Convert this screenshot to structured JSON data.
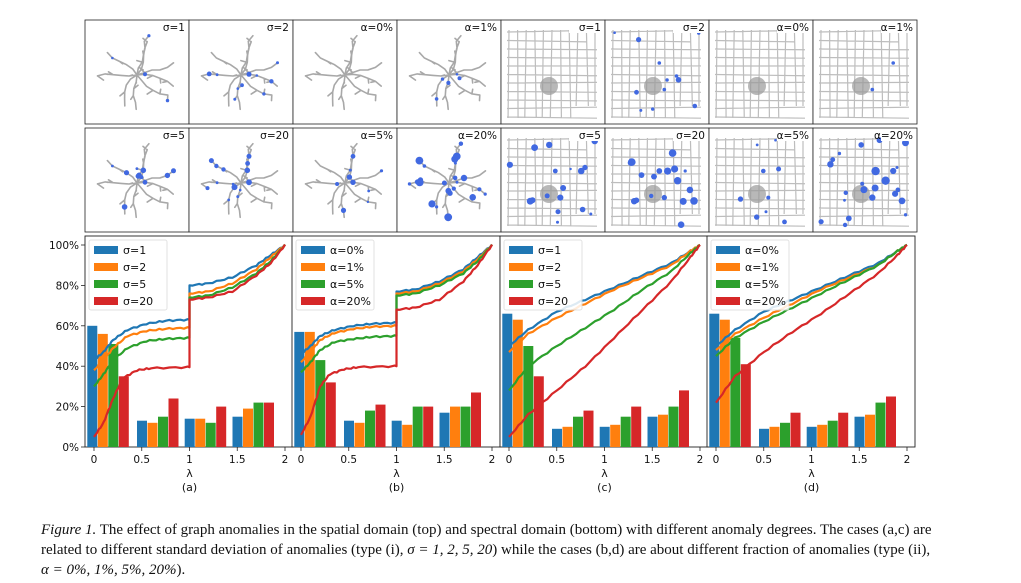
{
  "thumbnails": [
    {
      "row": 0,
      "label": "σ=1",
      "graph": "tree",
      "level": 0.1
    },
    {
      "row": 0,
      "label": "σ=2",
      "graph": "tree",
      "level": 0.28
    },
    {
      "row": 0,
      "label": "α=0%",
      "graph": "tree",
      "level": 0.0
    },
    {
      "row": 0,
      "label": "α=1%",
      "graph": "tree",
      "level": 0.12
    },
    {
      "row": 0,
      "label": "σ=1",
      "graph": "road",
      "level": 0.0
    },
    {
      "row": 0,
      "label": "σ=2",
      "graph": "road",
      "level": 0.35
    },
    {
      "row": 0,
      "label": "α=0%",
      "graph": "road",
      "level": 0.0
    },
    {
      "row": 0,
      "label": "α=1%",
      "graph": "road",
      "level": 0.06
    },
    {
      "row": 1,
      "label": "σ=5",
      "graph": "tree",
      "level": 0.3
    },
    {
      "row": 1,
      "label": "σ=20",
      "graph": "tree",
      "level": 0.42
    },
    {
      "row": 1,
      "label": "α=5%",
      "graph": "tree",
      "level": 0.25
    },
    {
      "row": 1,
      "label": "α=20%",
      "graph": "tree",
      "level": 0.75
    },
    {
      "row": 1,
      "label": "σ=5",
      "graph": "road",
      "level": 0.55
    },
    {
      "row": 1,
      "label": "σ=20",
      "graph": "road",
      "level": 0.75
    },
    {
      "row": 1,
      "label": "α=5%",
      "graph": "road",
      "level": 0.3
    },
    {
      "row": 1,
      "label": "α=20%",
      "graph": "road",
      "level": 0.9
    }
  ],
  "chart_data": [
    {
      "type": "bar",
      "panel_label": "(a)",
      "xlabel": "λ",
      "xlim": [
        0,
        2
      ],
      "ylim": [
        0,
        100
      ],
      "x_ticks": [
        "0",
        "0.5",
        "1",
        "1.5",
        "2"
      ],
      "y_ticks": [
        "0%",
        "20%",
        "40%",
        "60%",
        "80%",
        "100%"
      ],
      "bar_groups": [
        0.15,
        0.67,
        1.17,
        1.67
      ],
      "series": [
        {
          "name": "σ=1",
          "color": "#1f77b4",
          "values": [
            60,
            13,
            14,
            15
          ],
          "curve": [
            [
              0,
              43
            ],
            [
              0.1,
              47
            ],
            [
              0.2,
              53
            ],
            [
              0.35,
              58
            ],
            [
              0.55,
              61
            ],
            [
              0.75,
              62.5
            ],
            [
              0.98,
              63
            ],
            [
              1.0,
              80
            ],
            [
              1.2,
              81
            ],
            [
              1.45,
              84
            ],
            [
              1.7,
              90
            ],
            [
              1.85,
              95
            ],
            [
              2.0,
              100
            ]
          ]
        },
        {
          "name": "σ=2",
          "color": "#ff7f0e",
          "values": [
            56,
            12,
            14,
            19
          ],
          "curve": [
            [
              0,
              38
            ],
            [
              0.1,
              43
            ],
            [
              0.2,
              49
            ],
            [
              0.35,
              55
            ],
            [
              0.55,
              57.5
            ],
            [
              0.75,
              58.5
            ],
            [
              0.98,
              59
            ],
            [
              1.0,
              76
            ],
            [
              1.2,
              77
            ],
            [
              1.45,
              81
            ],
            [
              1.7,
              88
            ],
            [
              1.85,
              94
            ],
            [
              2.0,
              100
            ]
          ]
        },
        {
          "name": "σ=5",
          "color": "#2ca02c",
          "values": [
            51,
            15,
            12,
            22
          ],
          "curve": [
            [
              0,
              30
            ],
            [
              0.1,
              36
            ],
            [
              0.2,
              43
            ],
            [
              0.35,
              49
            ],
            [
              0.55,
              52.5
            ],
            [
              0.75,
              53.5
            ],
            [
              0.98,
              54
            ],
            [
              1.0,
              74
            ],
            [
              1.2,
              75
            ],
            [
              1.45,
              79
            ],
            [
              1.7,
              86
            ],
            [
              1.85,
              92
            ],
            [
              2.0,
              100
            ]
          ]
        },
        {
          "name": "σ=20",
          "color": "#d62728",
          "values": [
            35,
            24,
            20,
            22
          ],
          "curve": [
            [
              0,
              5
            ],
            [
              0.1,
              12
            ],
            [
              0.2,
              24
            ],
            [
              0.3,
              34
            ],
            [
              0.45,
              38
            ],
            [
              0.6,
              39
            ],
            [
              0.98,
              39.5
            ],
            [
              1.0,
              73
            ],
            [
              1.2,
              74
            ],
            [
              1.45,
              77
            ],
            [
              1.7,
              85
            ],
            [
              1.85,
              91
            ],
            [
              2.0,
              100
            ]
          ]
        }
      ]
    },
    {
      "type": "bar",
      "panel_label": "(b)",
      "xlabel": "λ",
      "xlim": [
        0,
        2
      ],
      "ylim": [
        0,
        100
      ],
      "x_ticks": [
        "0",
        "0.5",
        "1",
        "1.5",
        "2"
      ],
      "y_ticks": [],
      "bar_groups": [
        0.15,
        0.67,
        1.17,
        1.67
      ],
      "series": [
        {
          "name": "α=0%",
          "color": "#1f77b4",
          "values": [
            57,
            13,
            13,
            17
          ],
          "curve": [
            [
              0,
              46
            ],
            [
              0.1,
              50
            ],
            [
              0.2,
              55
            ],
            [
              0.35,
              58
            ],
            [
              0.55,
              60
            ],
            [
              0.75,
              61
            ],
            [
              0.98,
              61.5
            ],
            [
              1.0,
              77
            ],
            [
              1.2,
              78
            ],
            [
              1.45,
              82
            ],
            [
              1.7,
              88
            ],
            [
              1.85,
              94
            ],
            [
              2.0,
              100
            ]
          ]
        },
        {
          "name": "α=1%",
          "color": "#ff7f0e",
          "values": [
            57,
            12,
            11,
            20
          ],
          "curve": [
            [
              0,
              42
            ],
            [
              0.1,
              47
            ],
            [
              0.2,
              53
            ],
            [
              0.35,
              56.5
            ],
            [
              0.55,
              58.5
            ],
            [
              0.75,
              59.5
            ],
            [
              0.98,
              60
            ],
            [
              1.0,
              76
            ],
            [
              1.2,
              77
            ],
            [
              1.45,
              81
            ],
            [
              1.7,
              87
            ],
            [
              1.85,
              93
            ],
            [
              2.0,
              100
            ]
          ]
        },
        {
          "name": "α=5%",
          "color": "#2ca02c",
          "values": [
            43,
            18,
            20,
            20
          ],
          "curve": [
            [
              0,
              37
            ],
            [
              0.1,
              42
            ],
            [
              0.2,
              48
            ],
            [
              0.35,
              52
            ],
            [
              0.55,
              53.5
            ],
            [
              0.75,
              54.5
            ],
            [
              0.98,
              55
            ],
            [
              1.0,
              75
            ],
            [
              1.2,
              76
            ],
            [
              1.45,
              80
            ],
            [
              1.7,
              86
            ],
            [
              1.85,
              92
            ],
            [
              2.0,
              100
            ]
          ]
        },
        {
          "name": "α=20%",
          "color": "#d62728",
          "values": [
            32,
            21,
            20,
            27
          ],
          "curve": [
            [
              0,
              6
            ],
            [
              0.1,
              15
            ],
            [
              0.2,
              30
            ],
            [
              0.3,
              36
            ],
            [
              0.45,
              38.5
            ],
            [
              0.6,
              39.5
            ],
            [
              0.98,
              40
            ],
            [
              1.0,
              68
            ],
            [
              1.2,
              69
            ],
            [
              1.45,
              73
            ],
            [
              1.7,
              82
            ],
            [
              1.85,
              90
            ],
            [
              2.0,
              100
            ]
          ]
        }
      ]
    },
    {
      "type": "bar",
      "panel_label": "(c)",
      "xlabel": "λ",
      "xlim": [
        0,
        2
      ],
      "ylim": [
        0,
        100
      ],
      "x_ticks": [
        "0",
        "0.5",
        "1",
        "1.5",
        "2"
      ],
      "y_ticks": [],
      "bar_groups": [
        0.15,
        0.67,
        1.17,
        1.67
      ],
      "series": [
        {
          "name": "σ=1",
          "color": "#1f77b4",
          "values": [
            66,
            9,
            10,
            15
          ],
          "curve": [
            [
              0,
              50
            ],
            [
              0.2,
              58
            ],
            [
              0.5,
              67
            ],
            [
              0.8,
              73
            ],
            [
              1.1,
              79
            ],
            [
              1.4,
              85
            ],
            [
              1.7,
              91
            ],
            [
              1.9,
              97
            ],
            [
              2.0,
              100
            ]
          ]
        },
        {
          "name": "σ=2",
          "color": "#ff7f0e",
          "values": [
            63,
            10,
            11,
            16
          ],
          "curve": [
            [
              0,
              47
            ],
            [
              0.2,
              56
            ],
            [
              0.5,
              64
            ],
            [
              0.8,
              71
            ],
            [
              1.1,
              78
            ],
            [
              1.4,
              84
            ],
            [
              1.7,
              90
            ],
            [
              1.9,
              97
            ],
            [
              2.0,
              100
            ]
          ]
        },
        {
          "name": "σ=5",
          "color": "#2ca02c",
          "values": [
            50,
            15,
            15,
            20
          ],
          "curve": [
            [
              0,
              28
            ],
            [
              0.2,
              40
            ],
            [
              0.5,
              50
            ],
            [
              0.8,
              59
            ],
            [
              1.1,
              68
            ],
            [
              1.4,
              78
            ],
            [
              1.7,
              87
            ],
            [
              1.9,
              96
            ],
            [
              2.0,
              100
            ]
          ]
        },
        {
          "name": "σ=20",
          "color": "#d62728",
          "values": [
            35,
            18,
            20,
            28
          ],
          "curve": [
            [
              0,
              5
            ],
            [
              0.2,
              16
            ],
            [
              0.5,
              28
            ],
            [
              0.8,
              40
            ],
            [
              1.1,
              54
            ],
            [
              1.4,
              68
            ],
            [
              1.7,
              82
            ],
            [
              1.9,
              94
            ],
            [
              2.0,
              100
            ]
          ]
        }
      ]
    },
    {
      "type": "bar",
      "panel_label": "(d)",
      "xlabel": "λ",
      "xlim": [
        0,
        2
      ],
      "ylim": [
        0,
        100
      ],
      "x_ticks": [
        "0",
        "0.5",
        "1",
        "1.5",
        "2"
      ],
      "y_ticks": [],
      "bar_groups": [
        0.15,
        0.67,
        1.17,
        1.67
      ],
      "series": [
        {
          "name": "α=0%",
          "color": "#1f77b4",
          "values": [
            66,
            9,
            10,
            15
          ],
          "curve": [
            [
              0,
              50
            ],
            [
              0.2,
              58
            ],
            [
              0.5,
              67
            ],
            [
              0.8,
              73
            ],
            [
              1.1,
              79
            ],
            [
              1.4,
              85
            ],
            [
              1.7,
              91
            ],
            [
              1.9,
              97
            ],
            [
              2.0,
              100
            ]
          ]
        },
        {
          "name": "α=1%",
          "color": "#ff7f0e",
          "values": [
            63,
            10,
            11,
            16
          ],
          "curve": [
            [
              0,
              48
            ],
            [
              0.2,
              56
            ],
            [
              0.5,
              64
            ],
            [
              0.8,
              71
            ],
            [
              1.1,
              78
            ],
            [
              1.4,
              84
            ],
            [
              1.7,
              90
            ],
            [
              1.9,
              97
            ],
            [
              2.0,
              100
            ]
          ]
        },
        {
          "name": "α=5%",
          "color": "#2ca02c",
          "values": [
            54,
            12,
            13,
            22
          ],
          "curve": [
            [
              0,
              45
            ],
            [
              0.2,
              54
            ],
            [
              0.5,
              62
            ],
            [
              0.8,
              69
            ],
            [
              1.1,
              76
            ],
            [
              1.4,
              83
            ],
            [
              1.7,
              90
            ],
            [
              1.9,
              97
            ],
            [
              2.0,
              100
            ]
          ]
        },
        {
          "name": "α=20%",
          "color": "#d62728",
          "values": [
            41,
            17,
            17,
            25
          ],
          "curve": [
            [
              0,
              22
            ],
            [
              0.2,
              35
            ],
            [
              0.5,
              47
            ],
            [
              0.8,
              57
            ],
            [
              1.1,
              66
            ],
            [
              1.4,
              76
            ],
            [
              1.7,
              86
            ],
            [
              1.9,
              95
            ],
            [
              2.0,
              100
            ]
          ]
        }
      ]
    }
  ],
  "caption": {
    "label": "Figure 1.",
    "part1": " The effect of graph anomalies in the spatial domain (top) and spectral domain (bottom) with different anomaly degrees. The cases (a,c) are related to different standard deviation of anomalies (type (i), ",
    "math1": "σ = 1, 2, 5, 20",
    "part2": ") while the cases (b,d) are about different fraction of anomalies (type (ii), ",
    "math2": "α = 0%, 1%, 5%, 20%",
    "part3": ")."
  }
}
